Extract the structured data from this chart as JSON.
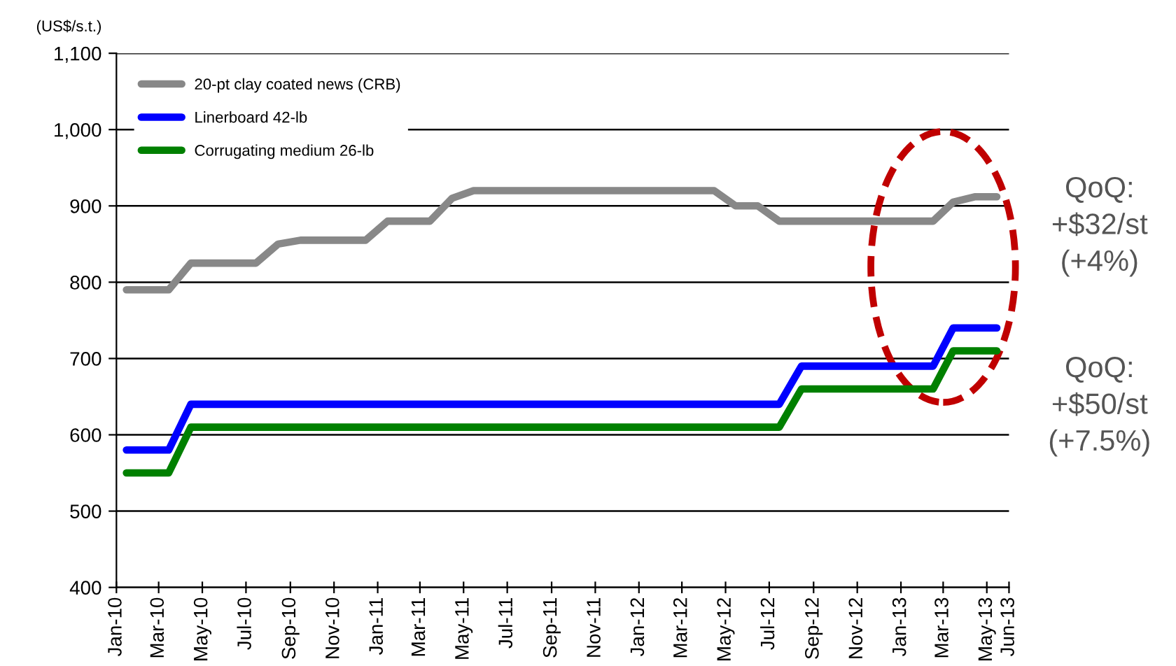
{
  "chart_data": {
    "type": "line",
    "ylabel": "(US$/s.t.)",
    "x": [
      "2010-01-15",
      "2010-02-15",
      "2010-03-15",
      "2010-04-15",
      "2010-05-15",
      "2010-06-15",
      "2010-07-15",
      "2010-08-15",
      "2010-09-15",
      "2010-10-15",
      "2010-11-15",
      "2010-12-15",
      "2011-01-15",
      "2011-02-15",
      "2011-03-15",
      "2011-04-15",
      "2011-05-15",
      "2011-06-15",
      "2011-07-15",
      "2011-08-15",
      "2011-09-15",
      "2011-10-15",
      "2011-11-15",
      "2011-12-15",
      "2012-01-15",
      "2012-02-15",
      "2012-03-15",
      "2012-04-15",
      "2012-05-15",
      "2012-06-15",
      "2012-07-15",
      "2012-08-15",
      "2012-09-15",
      "2012-10-15",
      "2012-11-15",
      "2012-12-15",
      "2013-01-15",
      "2013-02-15",
      "2013-03-15",
      "2013-04-15",
      "2013-05-15"
    ],
    "series": [
      {
        "name": "20-pt clay coated news (CRB)",
        "color": "#888888",
        "values": [
          790,
          790,
          790,
          825,
          825,
          825,
          825,
          850,
          855,
          855,
          855,
          855,
          880,
          880,
          880,
          910,
          920,
          920,
          920,
          920,
          920,
          920,
          920,
          920,
          920,
          920,
          920,
          920,
          900,
          900,
          880,
          880,
          880,
          880,
          880,
          880,
          880,
          880,
          905,
          912,
          912
        ]
      },
      {
        "name": "Linerboard 42-lb",
        "color": "#0000ff",
        "values": [
          580,
          580,
          580,
          640,
          640,
          640,
          640,
          640,
          640,
          640,
          640,
          640,
          640,
          640,
          640,
          640,
          640,
          640,
          640,
          640,
          640,
          640,
          640,
          640,
          640,
          640,
          640,
          640,
          640,
          640,
          640,
          690,
          690,
          690,
          690,
          690,
          690,
          690,
          740,
          740,
          740
        ]
      },
      {
        "name": "Corrugating medium 26-lb",
        "color": "#008000",
        "values": [
          550,
          550,
          550,
          610,
          610,
          610,
          610,
          610,
          610,
          610,
          610,
          610,
          610,
          610,
          610,
          610,
          610,
          610,
          610,
          610,
          610,
          610,
          610,
          610,
          610,
          610,
          610,
          610,
          610,
          610,
          610,
          660,
          660,
          660,
          660,
          660,
          660,
          660,
          710,
          710,
          710
        ]
      }
    ],
    "xlim": [
      "2010-01-01",
      "2013-06-01"
    ],
    "xticks": [
      {
        "value": "2010-01-01",
        "label": "Jan-10"
      },
      {
        "value": "2010-03-01",
        "label": "Mar-10"
      },
      {
        "value": "2010-05-01",
        "label": "May-10"
      },
      {
        "value": "2010-07-01",
        "label": "Jul-10"
      },
      {
        "value": "2010-09-01",
        "label": "Sep-10"
      },
      {
        "value": "2010-11-01",
        "label": "Nov-10"
      },
      {
        "value": "2011-01-01",
        "label": "Jan-11"
      },
      {
        "value": "2011-03-01",
        "label": "Mar-11"
      },
      {
        "value": "2011-05-01",
        "label": "May-11"
      },
      {
        "value": "2011-07-01",
        "label": "Jul-11"
      },
      {
        "value": "2011-09-01",
        "label": "Sep-11"
      },
      {
        "value": "2011-11-01",
        "label": "Nov-11"
      },
      {
        "value": "2012-01-01",
        "label": "Jan-12"
      },
      {
        "value": "2012-03-01",
        "label": "Mar-12"
      },
      {
        "value": "2012-05-01",
        "label": "May-12"
      },
      {
        "value": "2012-07-01",
        "label": "Jul-12"
      },
      {
        "value": "2012-09-01",
        "label": "Sep-12"
      },
      {
        "value": "2012-11-01",
        "label": "Nov-12"
      },
      {
        "value": "2013-01-01",
        "label": "Jan-13"
      },
      {
        "value": "2013-03-01",
        "label": "Mar-13"
      },
      {
        "value": "2013-05-01",
        "label": "May-13"
      },
      {
        "value": "2013-06-01",
        "label": "Jun-13"
      }
    ],
    "ylim": [
      400,
      1100
    ],
    "yticks": [
      400,
      500,
      600,
      700,
      800,
      900,
      {
        "value": 1000,
        "label": "1,000"
      },
      {
        "value": 1100,
        "label": "1,100"
      }
    ],
    "grid": "y",
    "legend": "top left",
    "marker": "none",
    "line_style": "solid",
    "annotations": [
      "QoQ:\n+$32/st\n(+4%)",
      "QoQ:\n+$50/st\n(+7.5%)"
    ]
  }
}
